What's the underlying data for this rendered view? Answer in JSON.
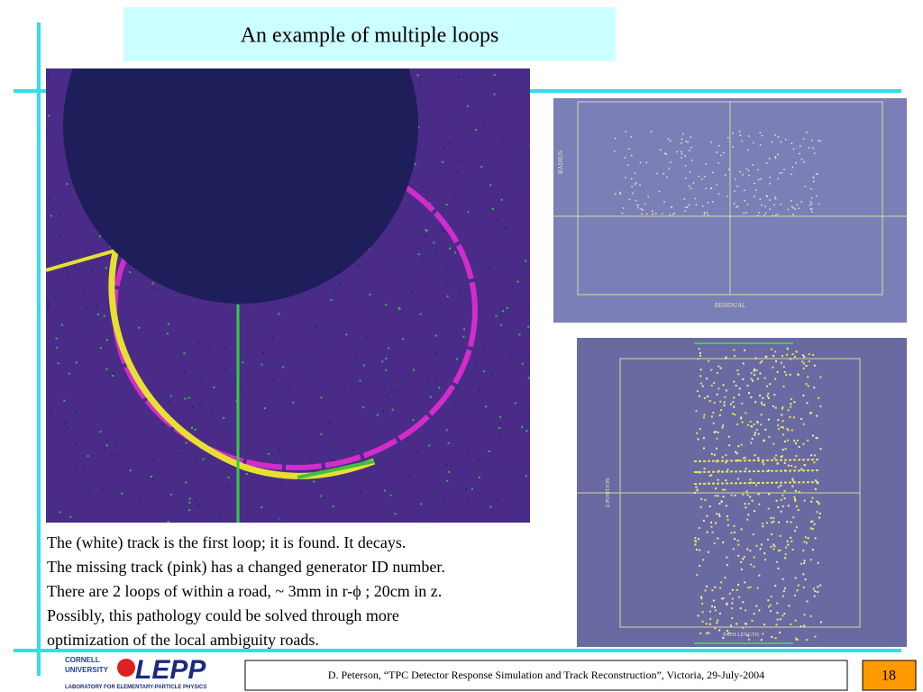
{
  "title": "An example of multiple loops",
  "body": [
    "The (white) track is the first loop; it is found. It decays.",
    "The missing track (pink) has a changed generator ID number.",
    "There are 2 loops of within a road,  ~ 3mm in r-ϕ ; 20cm in z.",
    "Possibly, this pathology could be solved through more",
    "optimization of the local ambiguity roads."
  ],
  "plots": {
    "residual": {
      "ylabel": "RADIUS",
      "xlabel": "RESIDUAL"
    },
    "zposition": {
      "ylabel": "Z POSITION",
      "xlabel": "PATH LENGTH"
    }
  },
  "logo": {
    "line1": "CORNELL",
    "line2": "UNIVERSITY",
    "name": "LEPP",
    "tagline": "LABORATORY FOR ELEMENTARY-PARTICLE PHYSICS"
  },
  "footer": {
    "citation": "D. Peterson, “TPC Detector Response Simulation and Track Reconstruction”, Victoria, 29-July-2004",
    "page": "18"
  }
}
